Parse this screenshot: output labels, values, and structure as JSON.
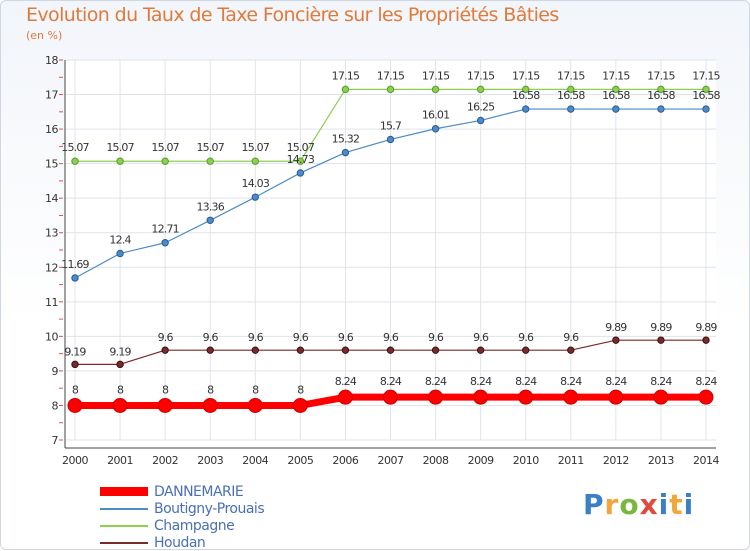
{
  "chart_data": {
    "type": "line",
    "title": "Evolution du Taux de Taxe Foncière sur les Propriétés Bâties",
    "subtitle": "(en %)",
    "xlabel": "",
    "ylabel": "(en %)",
    "categories": [
      "2000",
      "2001",
      "2002",
      "2003",
      "2004",
      "2005",
      "2006",
      "2007",
      "2008",
      "2009",
      "2010",
      "2011",
      "2012",
      "2013",
      "2014"
    ],
    "ylim": [
      7,
      18
    ],
    "yticks": [
      "7",
      "8",
      "9",
      "10",
      "11",
      "12",
      "13",
      "14",
      "15",
      "16",
      "17",
      "18"
    ],
    "grid": true,
    "series": [
      {
        "name": "DANNEMARIE",
        "color": "#ff0000",
        "values": [
          8,
          8,
          8,
          8,
          8,
          8,
          8.24,
          8.24,
          8.24,
          8.24,
          8.24,
          8.24,
          8.24,
          8.24,
          8.24
        ],
        "labels": [
          "8",
          "8",
          "8",
          "8",
          "8",
          "8",
          "8.24",
          "8.24",
          "8.24",
          "8.24",
          "8.24",
          "8.24",
          "8.24",
          "8.24",
          "8.24"
        ]
      },
      {
        "name": "Boutigny-Prouais",
        "color": "#4a8bc8",
        "values": [
          11.69,
          12.4,
          12.71,
          13.36,
          14.03,
          14.73,
          15.32,
          15.7,
          16.01,
          16.25,
          16.58,
          16.58,
          16.58,
          16.58,
          16.58
        ],
        "labels": [
          "11.69",
          "12.4",
          "12.71",
          "13.36",
          "14.03",
          "14.73",
          "15.32",
          "15.7",
          "16.01",
          "16.25",
          "16.58",
          "16.58",
          "16.58",
          "16.58",
          "16.58"
        ]
      },
      {
        "name": "Champagne",
        "color": "#8cd050",
        "values": [
          15.07,
          15.07,
          15.07,
          15.07,
          15.07,
          15.07,
          17.15,
          17.15,
          17.15,
          17.15,
          17.15,
          17.15,
          17.15,
          17.15,
          17.15
        ],
        "labels": [
          "15.07",
          "15.07",
          "15.07",
          "15.07",
          "15.07",
          "15.07",
          "17.15",
          "17.15",
          "17.15",
          "17.15",
          "17.15",
          "17.15",
          "17.15",
          "17.15",
          "17.15"
        ]
      },
      {
        "name": "Houdan",
        "color": "#7a2a2a",
        "values": [
          9.19,
          9.19,
          9.6,
          9.6,
          9.6,
          9.6,
          9.6,
          9.6,
          9.6,
          9.6,
          9.6,
          9.6,
          9.89,
          9.89,
          9.89
        ],
        "labels": [
          "9.19",
          "9.19",
          "9.6",
          "9.6",
          "9.6",
          "9.6",
          "9.6",
          "9.6",
          "9.6",
          "9.6",
          "9.6",
          "9.6",
          "9.89",
          "9.89",
          "9.89"
        ]
      }
    ]
  },
  "legend": {
    "items": [
      {
        "label": "DANNEMARIE",
        "color": "#ff0000"
      },
      {
        "label": "Boutigny-Prouais",
        "color": "#4a8bc8"
      },
      {
        "label": "Champagne",
        "color": "#8cd050"
      },
      {
        "label": "Houdan",
        "color": "#7a2a2a"
      }
    ]
  },
  "logo": {
    "p": "P",
    "r": "r",
    "o": "o",
    "x": "x",
    "i": "i",
    "t": "t",
    "i2": "i"
  }
}
